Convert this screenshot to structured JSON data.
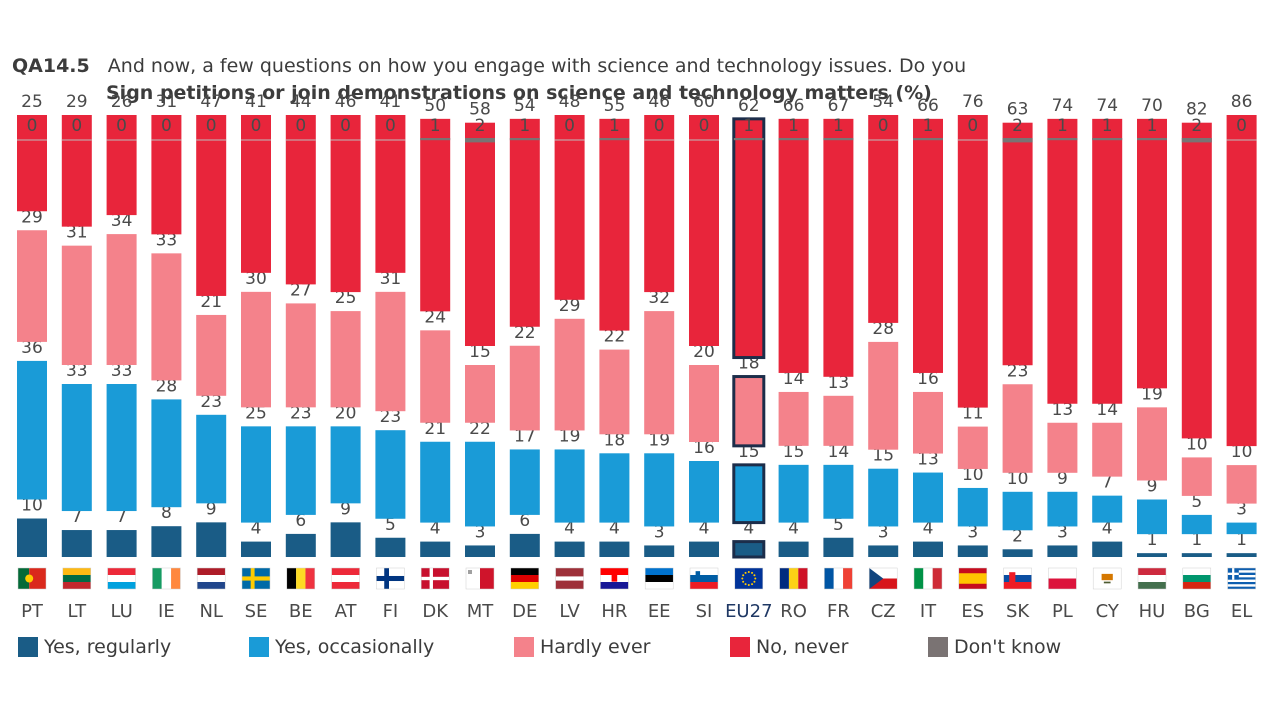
{
  "header": {
    "code": "QA14.5",
    "question": "And now, a few questions on how you engage with science and technology issues. Do you",
    "subtitle": "Sign petitions or join demonstrations on science and technology matters  (%)"
  },
  "colors": {
    "regularly": "#1a5c86",
    "occasionally": "#1a9bd7",
    "hardly": "#f4828b",
    "never": "#e8253b",
    "dont_know": "#7a7373",
    "highlight_border": "#1c2d4a",
    "label_text": "#4a4a4a"
  },
  "legend": [
    {
      "key": "regularly",
      "label": "Yes, regularly"
    },
    {
      "key": "occasionally",
      "label": "Yes, occasionally"
    },
    {
      "key": "hardly",
      "label": "Hardly ever"
    },
    {
      "key": "never",
      "label": "No, never"
    },
    {
      "key": "dont_know",
      "label": "Don't know"
    }
  ],
  "chart_data": {
    "type": "bar",
    "stacked": true,
    "highlight": "EU27",
    "categories": [
      "PT",
      "LT",
      "LU",
      "IE",
      "NL",
      "SE",
      "BE",
      "AT",
      "FI",
      "DK",
      "MT",
      "DE",
      "LV",
      "HR",
      "EE",
      "SI",
      "EU27",
      "RO",
      "FR",
      "CZ",
      "IT",
      "ES",
      "SK",
      "PL",
      "CY",
      "HU",
      "BG",
      "EL"
    ],
    "flags": [
      "flag-pt-icon",
      "flag-lt-icon",
      "flag-lu-icon",
      "flag-ie-icon",
      "flag-nl-icon",
      "flag-se-icon",
      "flag-be-icon",
      "flag-at-icon",
      "flag-fi-icon",
      "flag-dk-icon",
      "flag-mt-icon",
      "flag-de-icon",
      "flag-lv-icon",
      "flag-hr-icon",
      "flag-ee-icon",
      "flag-si-icon",
      "flag-eu-icon",
      "flag-ro-icon",
      "flag-fr-icon",
      "flag-cz-icon",
      "flag-it-icon",
      "flag-es-icon",
      "flag-sk-icon",
      "flag-pl-icon",
      "flag-cy-icon",
      "flag-hu-icon",
      "flag-bg-icon",
      "flag-el-icon"
    ],
    "series": [
      {
        "name": "Yes, regularly",
        "values": [
          10,
          7,
          7,
          8,
          9,
          4,
          6,
          9,
          5,
          4,
          3,
          6,
          4,
          4,
          3,
          4,
          4,
          4,
          5,
          3,
          4,
          3,
          2,
          3,
          4,
          1,
          1,
          1
        ]
      },
      {
        "name": "Yes, occasionally",
        "values": [
          36,
          33,
          33,
          28,
          23,
          25,
          23,
          20,
          23,
          21,
          22,
          17,
          19,
          18,
          19,
          16,
          15,
          15,
          14,
          15,
          13,
          10,
          10,
          9,
          7,
          9,
          5,
          3
        ]
      },
      {
        "name": "Hardly ever",
        "values": [
          29,
          31,
          34,
          33,
          21,
          30,
          27,
          25,
          31,
          24,
          15,
          22,
          29,
          22,
          32,
          20,
          18,
          14,
          13,
          28,
          16,
          11,
          23,
          13,
          14,
          19,
          10,
          10
        ]
      },
      {
        "name": "No, never",
        "values": [
          25,
          29,
          26,
          31,
          47,
          41,
          44,
          46,
          41,
          50,
          58,
          54,
          48,
          55,
          46,
          60,
          62,
          66,
          67,
          54,
          66,
          76,
          63,
          74,
          74,
          70,
          82,
          86
        ]
      },
      {
        "name": "Don't know",
        "values": [
          0,
          0,
          0,
          0,
          0,
          0,
          0,
          0,
          0,
          1,
          2,
          1,
          0,
          1,
          0,
          0,
          1,
          1,
          1,
          0,
          1,
          0,
          2,
          1,
          1,
          1,
          2,
          0
        ]
      }
    ]
  }
}
